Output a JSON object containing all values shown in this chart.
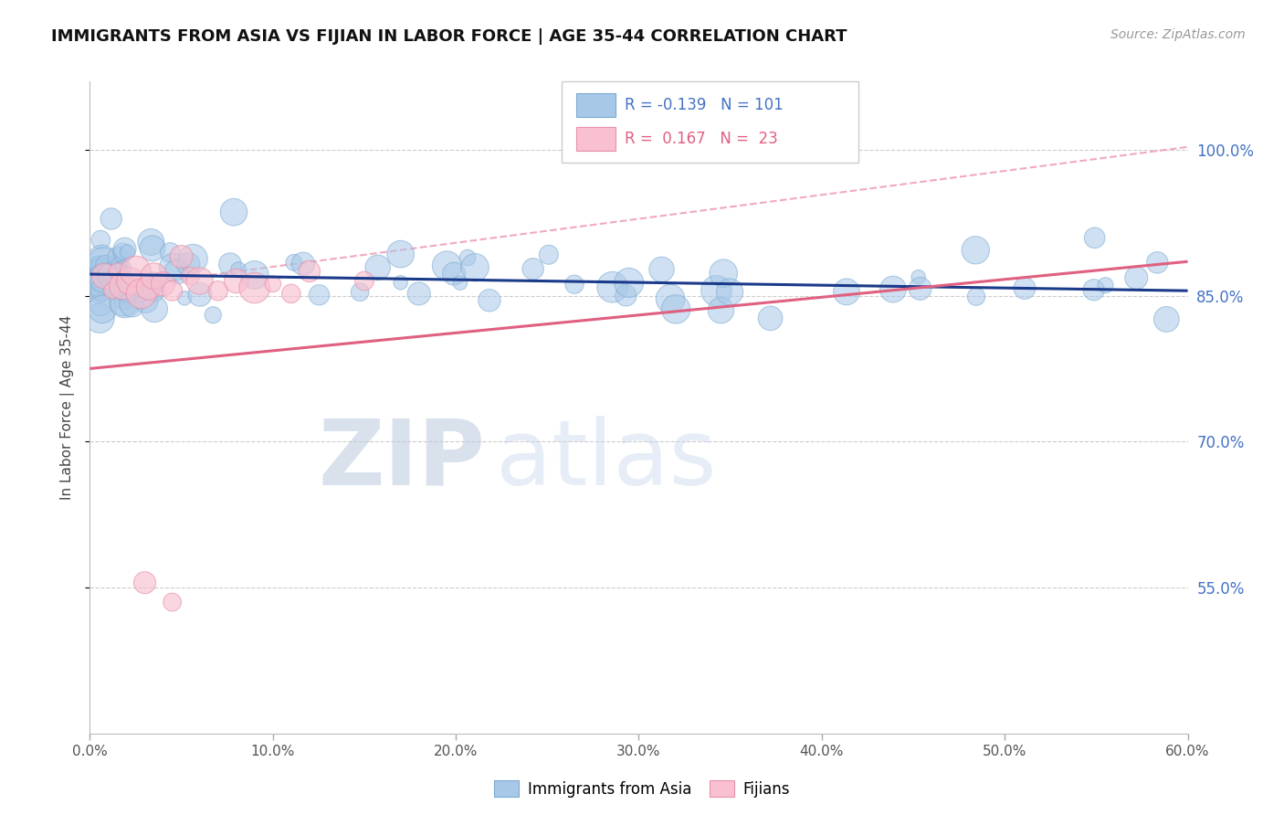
{
  "title": "IMMIGRANTS FROM ASIA VS FIJIAN IN LABOR FORCE | AGE 35-44 CORRELATION CHART",
  "source": "Source: ZipAtlas.com",
  "ylabel": "In Labor Force | Age 35-44",
  "xmin": 0.0,
  "xmax": 0.6,
  "ymin": 0.4,
  "ymax": 1.07,
  "ytick_labels": [
    "55.0%",
    "70.0%",
    "85.0%",
    "100.0%"
  ],
  "ytick_values": [
    0.55,
    0.7,
    0.85,
    1.0
  ],
  "xtick_labels": [
    "0.0%",
    "10.0%",
    "20.0%",
    "30.0%",
    "40.0%",
    "50.0%",
    "60.0%"
  ],
  "xtick_values": [
    0.0,
    0.1,
    0.2,
    0.3,
    0.4,
    0.5,
    0.6
  ],
  "legend_blue_r": "-0.139",
  "legend_blue_n": "101",
  "legend_pink_r": "0.167",
  "legend_pink_n": "23",
  "legend_label_blue": "Immigrants from Asia",
  "legend_label_pink": "Fijians",
  "blue_color": "#A8C8E8",
  "blue_edge": "#7AAAD0",
  "pink_color": "#F8C0D0",
  "pink_edge": "#E890A8",
  "trend_blue_color": "#1A3A8A",
  "trend_pink_color": "#E06080",
  "trend_dashed_color": "#F0A0B8",
  "right_label_color": "#4472C4",
  "watermark_zip_color": "#C8D4E8",
  "watermark_atlas_color": "#C0D0E8"
}
